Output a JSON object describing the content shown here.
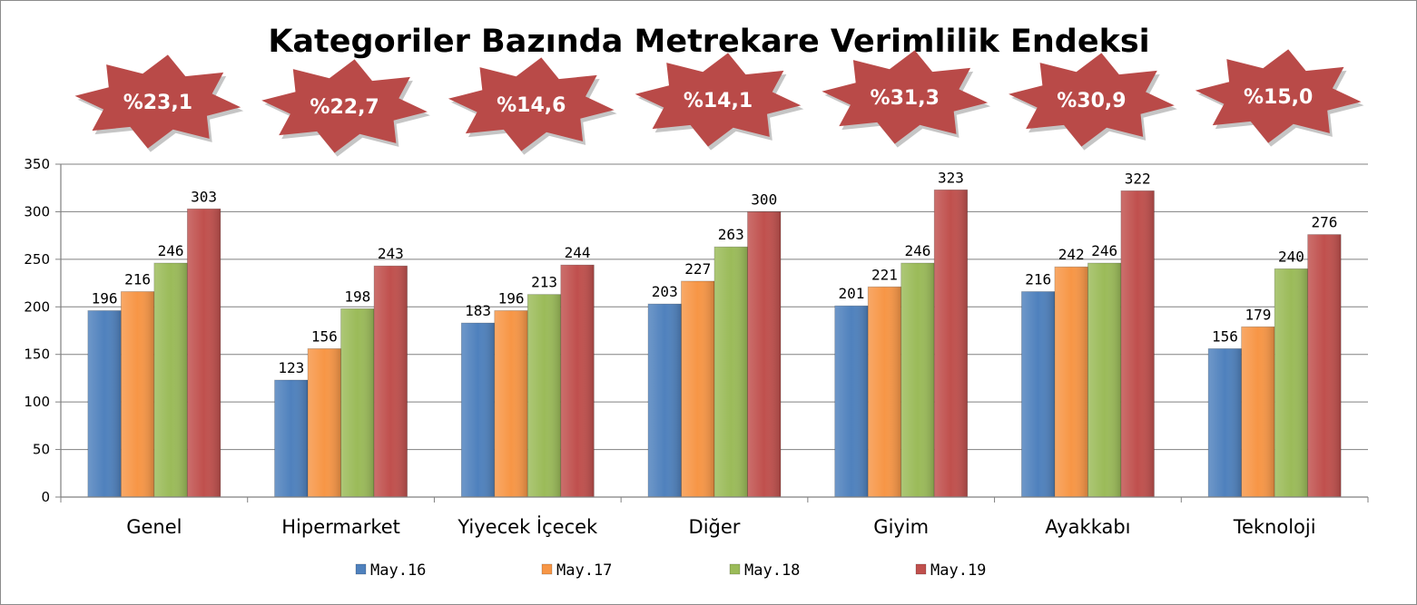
{
  "chart_data": {
    "type": "bar",
    "title": "Kategoriler Bazında Metrekare Verimlilik Endeksi",
    "categories": [
      "Genel",
      "Hipermarket",
      "Yiyecek İçecek",
      "Diğer",
      "Giyim",
      "Ayakkabı",
      "Teknoloji"
    ],
    "series": [
      {
        "name": "May.16",
        "color": "#4f81bd",
        "values": [
          196,
          123,
          183,
          203,
          201,
          216,
          156
        ]
      },
      {
        "name": "May.17",
        "color": "#f79646",
        "values": [
          216,
          156,
          196,
          227,
          221,
          242,
          179
        ]
      },
      {
        "name": "May.18",
        "color": "#9bbb59",
        "values": [
          246,
          198,
          213,
          263,
          246,
          246,
          240
        ]
      },
      {
        "name": "May.19",
        "color": "#c0504d",
        "values": [
          303,
          243,
          244,
          300,
          323,
          322,
          276
        ]
      }
    ],
    "badges": [
      "%23,1",
      "%22,7",
      "%14,6",
      "%14,1",
      "%31,3",
      "%30,9",
      "%15,0"
    ],
    "badge_color": "#b94a48",
    "ylim": [
      0,
      350
    ],
    "yticks": [
      0,
      50,
      100,
      150,
      200,
      250,
      300,
      350
    ],
    "grid": true,
    "legend_position": "bottom"
  }
}
